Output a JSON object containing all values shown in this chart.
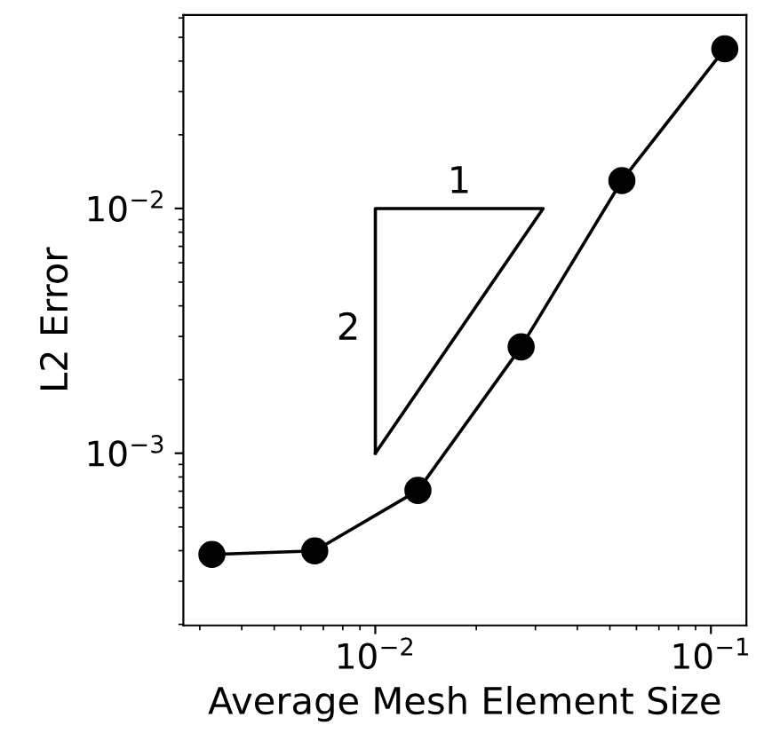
{
  "chart_data": {
    "type": "line",
    "xlabel": "Average Mesh Element Size",
    "ylabel": "L2 Error",
    "log": "xy",
    "xlim": [
      0.00268,
      0.1276
    ],
    "ylim": [
      0.000198,
      0.0617
    ],
    "xticks": [
      {
        "value": 0.01,
        "label": "10$^{−2}$"
      },
      {
        "value": 0.1,
        "label": "10$^{−1}$"
      }
    ],
    "yticks": [
      {
        "value": 0.001,
        "label": "10$^{−3}$"
      },
      {
        "value": 0.01,
        "label": "10$^{−2}$"
      }
    ],
    "grid": false,
    "legend": false,
    "series": [
      {
        "color": "#000000",
        "marker": "circle",
        "x": [
          0.00326,
          0.0066,
          0.0134,
          0.0272,
          0.0543,
          0.11
        ],
        "values": [
          0.000386,
          0.000399,
          0.000705,
          0.00272,
          0.013,
          0.0449
        ]
      }
    ],
    "annotations": [
      "1",
      "2"
    ]
  }
}
